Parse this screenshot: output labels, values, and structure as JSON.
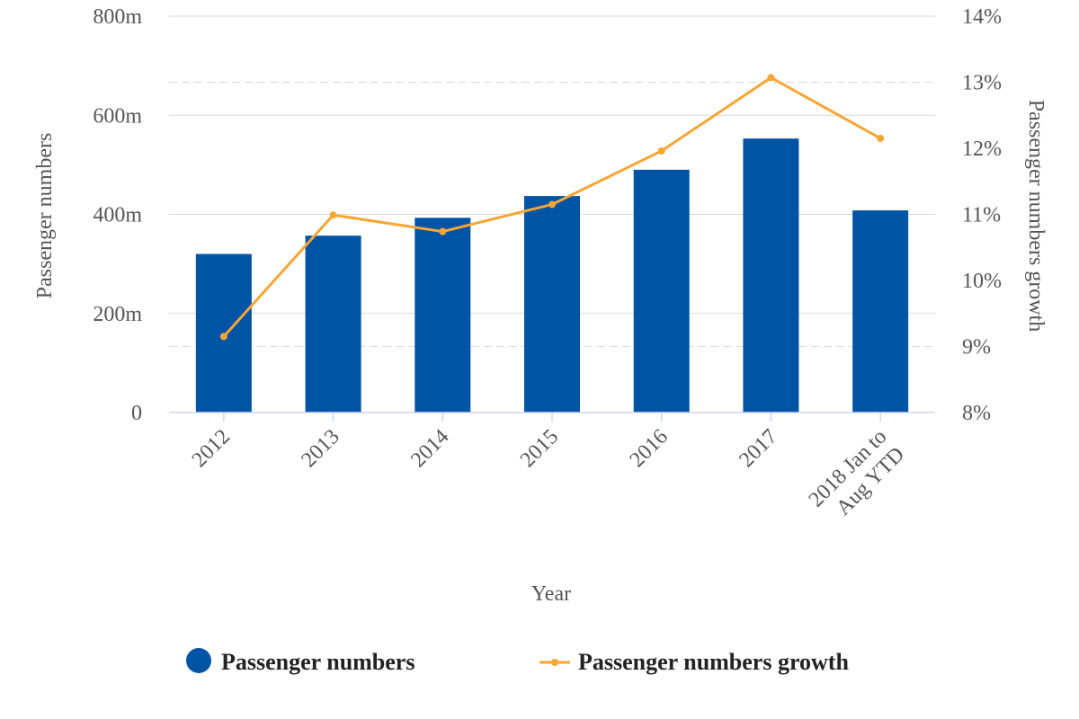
{
  "chart_data": {
    "type": "bar",
    "categories": [
      "2012",
      "2013",
      "2014",
      "2015",
      "2016",
      "2017",
      "2018 Jan to Aug YTD"
    ],
    "category_lines": [
      [
        "2012"
      ],
      [
        "2013"
      ],
      [
        "2014"
      ],
      [
        "2015"
      ],
      [
        "2016"
      ],
      [
        "2017"
      ],
      [
        "2018 Jan to",
        "Aug YTD"
      ]
    ],
    "series": [
      {
        "name": "Passenger numbers",
        "type": "bar",
        "axis": "left",
        "color": "#0054A6",
        "values": [
          320,
          357,
          393,
          437,
          490,
          553,
          408
        ]
      },
      {
        "name": "Passenger numbers growth",
        "type": "line",
        "axis": "right",
        "color": "#F7A535",
        "values": [
          9.15,
          10.99,
          10.74,
          11.15,
          11.96,
          13.07,
          12.15
        ]
      }
    ],
    "xlabel": "Year",
    "ylabel": "Passenger numbers",
    "y2label": "Passenger numbers growth",
    "ylim": [
      0,
      800
    ],
    "y2lim": [
      8,
      14
    ],
    "yticks": [
      "0",
      "200m",
      "400m",
      "600m",
      "800m"
    ],
    "y2ticks": [
      "8%",
      "9%",
      "10%",
      "11%",
      "12%",
      "13%",
      "14%"
    ],
    "grid": true,
    "legend": "bottom"
  }
}
